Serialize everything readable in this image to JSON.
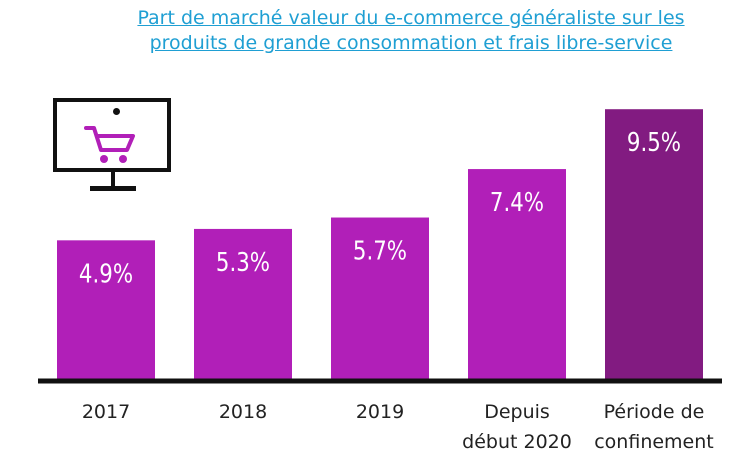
{
  "chart_data": {
    "type": "bar",
    "title": "Part de marché  valeur du e-commerce généraliste sur les\nproduits de grande consommation et frais libre-service",
    "categories": [
      "2017",
      "2018",
      "2019",
      "Depuis\ndébut 2020",
      "Période de\nconfinement"
    ],
    "values": [
      4.9,
      5.3,
      5.7,
      7.4,
      9.5
    ],
    "value_labels": [
      "4.9%",
      "5.3%",
      "5.7%",
      "7.4%",
      "9.5%"
    ],
    "ylim": [
      0,
      10.7
    ],
    "grid": false,
    "legend": "none",
    "colors": [
      "#b11fb8",
      "#b11fb8",
      "#b11fb8",
      "#b11fb8",
      "#821b81"
    ],
    "axis_color": "#111111",
    "title_color": "#1f9fd3"
  },
  "icons": {
    "monitor": "monitor-icon",
    "cart": "shopping-cart-icon",
    "cart_color": "#b11fb8"
  }
}
